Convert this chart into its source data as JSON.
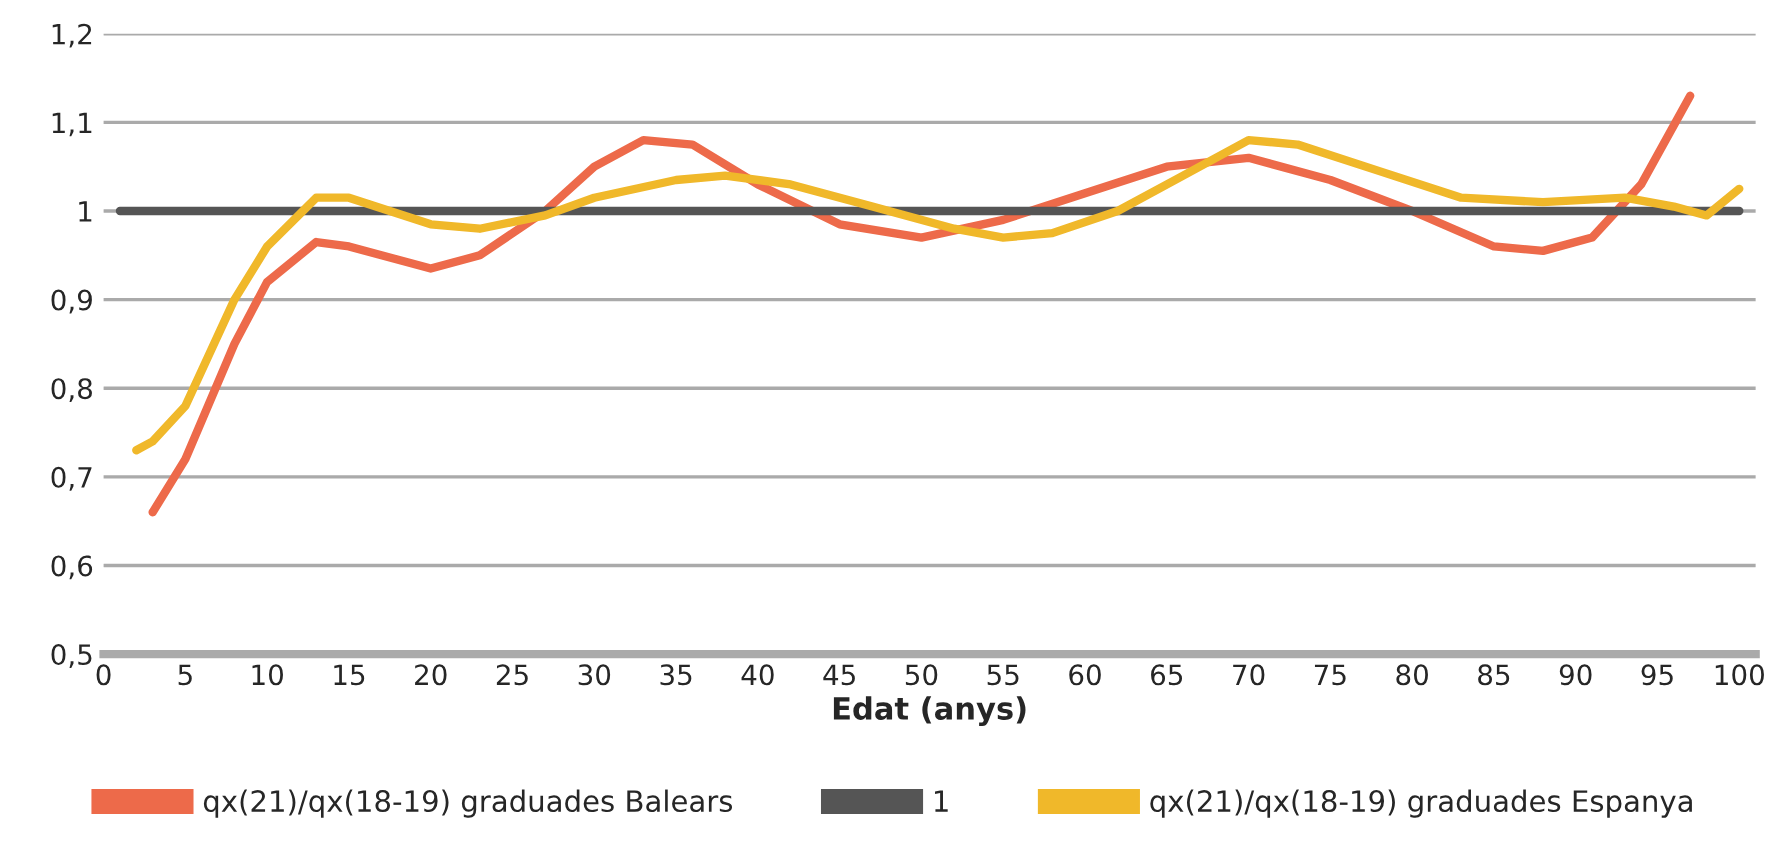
{
  "chart_data": {
    "type": "line",
    "xlabel": "Edat (anys)",
    "xlim": [
      0,
      101
    ],
    "xticks": [
      0,
      5,
      10,
      15,
      20,
      25,
      30,
      35,
      40,
      45,
      50,
      55,
      60,
      65,
      70,
      75,
      80,
      85,
      90,
      95,
      100
    ],
    "ylim": [
      0.5,
      1.2
    ],
    "yticks": [
      {
        "value": 0.5,
        "label": "0,5"
      },
      {
        "value": 0.6,
        "label": "0,6"
      },
      {
        "value": 0.7,
        "label": "0,7"
      },
      {
        "value": 0.8,
        "label": "0,8"
      },
      {
        "value": 0.9,
        "label": "0,9"
      },
      {
        "value": 1,
        "label": "1"
      },
      {
        "value": 1.1,
        "label": "1,1"
      },
      {
        "value": 1.2,
        "label": "1,2"
      }
    ],
    "grid": "y",
    "legend": "bottom",
    "marker": "none",
    "line_style": "solid",
    "series": [
      {
        "name": "qx(21)/qx(18-19) graduades Balears",
        "color": "#ed6a4a",
        "x": [
          3,
          5,
          8,
          10,
          13,
          15,
          20,
          23,
          27,
          30,
          33,
          36,
          40,
          45,
          50,
          55,
          60,
          65,
          70,
          75,
          80,
          85,
          88,
          91,
          94,
          97
        ],
        "values": [
          0.66,
          0.72,
          0.85,
          0.92,
          0.965,
          0.96,
          0.935,
          0.95,
          1.0,
          1.05,
          1.08,
          1.075,
          1.03,
          0.985,
          0.97,
          0.99,
          1.02,
          1.05,
          1.06,
          1.035,
          1.0,
          0.96,
          0.955,
          0.97,
          1.03,
          1.13
        ]
      },
      {
        "name": "1",
        "color": "#555555",
        "x": [
          1,
          100
        ],
        "values": [
          1,
          1
        ]
      },
      {
        "name": "qx(21)/qx(18-19) graduades Espanya",
        "color": "#f0b82a",
        "x": [
          2,
          3,
          5,
          8,
          10,
          13,
          15,
          20,
          23,
          27,
          30,
          35,
          38,
          42,
          47,
          52,
          55,
          58,
          62,
          66,
          70,
          73,
          78,
          83,
          88,
          93,
          96,
          98,
          100
        ],
        "values": [
          0.73,
          0.74,
          0.78,
          0.9,
          0.96,
          1.015,
          1.015,
          0.985,
          0.98,
          0.995,
          1.015,
          1.035,
          1.04,
          1.03,
          1.005,
          0.98,
          0.97,
          0.975,
          1.0,
          1.04,
          1.08,
          1.075,
          1.045,
          1.015,
          1.01,
          1.015,
          1.005,
          0.995,
          1.025
        ]
      }
    ]
  }
}
